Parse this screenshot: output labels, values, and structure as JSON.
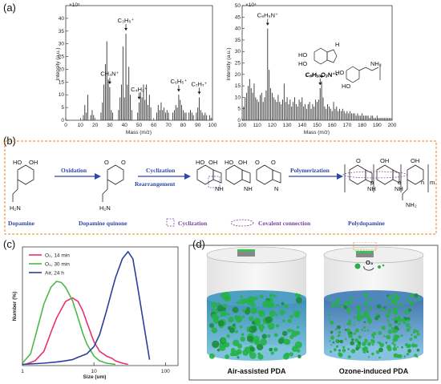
{
  "panels": {
    "a": "(a)",
    "b": "(b)",
    "c": "(c)",
    "d": "(d)"
  },
  "panel_a": {
    "left": {
      "exponent": "×10⁵",
      "ylabel": "Intensity (a.u.)",
      "xlabel": "Mass (m/z)",
      "yticks": [
        "0",
        "5",
        "10",
        "15",
        "20",
        "25",
        "30",
        "35",
        "40"
      ],
      "xticks": [
        "0",
        "10",
        "20",
        "30",
        "40",
        "50",
        "60",
        "70",
        "80",
        "90",
        "100"
      ],
      "annotations": [
        {
          "id": "ch4n",
          "text": "CH₄N⁺",
          "mz": 30
        },
        {
          "id": "c3h5",
          "text": "C₃H₅⁺",
          "mz": 41
        },
        {
          "id": "c4h2",
          "text": "C₄H₂⁺",
          "mz": 50
        },
        {
          "id": "c6h5",
          "text": "C₆H₅⁺",
          "mz": 77
        },
        {
          "id": "c7h7",
          "text": "C₇H₇⁺",
          "mz": 91
        }
      ]
    },
    "right": {
      "exponent": "×10⁴",
      "ylabel": "Intensity (a.u.)",
      "xlabel": "Mass (m/z)",
      "yticks": [
        "0",
        "5",
        "10",
        "15",
        "20",
        "25",
        "30",
        "35",
        "40",
        "45",
        "50"
      ],
      "xticks": [
        "100",
        "110",
        "120",
        "130",
        "140",
        "150",
        "160",
        "170",
        "180",
        "190",
        "200"
      ],
      "annotations": [
        {
          "id": "c8h5n",
          "text": "C₈H₅N⁺",
          "mz": 117
        },
        {
          "id": "c8h10o2n",
          "text": "C₈H₁₀O₂N⁺",
          "mz": 152
        },
        {
          "id": "c8h11o2n",
          "text": "C₈H₁₁O₂N⁺•",
          "mz": 153
        }
      ]
    }
  },
  "panel_b": {
    "steps": [
      "Oxidation",
      "Cyclization",
      "Rearrangement",
      "Polymerization"
    ],
    "compounds": [
      "Dopamine",
      "Dopamine quinone",
      "Polydopamine"
    ],
    "legend": [
      "Cyclization",
      "Covalent connection"
    ],
    "atoms": {
      "ho": "HO",
      "oh": "OH",
      "o": "O",
      "h2n": "H₂N",
      "nh2": "NH₂",
      "hn": "HN",
      "nh": "NH",
      "h": "H",
      "n": "N"
    },
    "subscripts": [
      "p",
      "o",
      "n",
      "m"
    ]
  },
  "panel_c": {
    "ylabel": "Number (%)",
    "xlabel": "Size (um)",
    "xticks": [
      "1",
      "10",
      "100"
    ],
    "legend": [
      {
        "label": "O₃, 14 min",
        "color": "#e8326e"
      },
      {
        "label": "O₃, 30 min",
        "color": "#4cb84a"
      },
      {
        "label": "Air, 24 h",
        "color": "#2b3f9e"
      }
    ]
  },
  "panel_d": {
    "left_label": "Air-assisted PDA",
    "right_label": "Ozone-induced PDA",
    "reagent": "O₃"
  },
  "chart_data": [
    {
      "type": "bar",
      "title": "",
      "xlabel": "Mass (m/z)",
      "ylabel": "Intensity (a.u.)",
      "xlim": [
        0,
        100
      ],
      "ylim": [
        0,
        45
      ],
      "x": [
        12,
        13,
        14,
        15,
        17,
        18,
        19,
        24,
        25,
        26,
        27,
        28,
        29,
        30,
        31,
        32,
        36,
        37,
        38,
        39,
        40,
        41,
        42,
        43,
        44,
        45,
        49,
        50,
        51,
        52,
        53,
        54,
        55,
        56,
        57,
        58,
        62,
        63,
        64,
        65,
        66,
        67,
        68,
        69,
        70,
        73,
        74,
        75,
        76,
        77,
        78,
        79,
        80,
        81,
        82,
        84,
        85,
        86,
        87,
        89,
        90,
        91,
        92,
        93,
        94,
        95,
        96,
        98,
        99
      ],
      "values": [
        2,
        6,
        3,
        10,
        2,
        4,
        2,
        3,
        7,
        14,
        22,
        31,
        16,
        13,
        4,
        3,
        4,
        9,
        14,
        29,
        9,
        34,
        14,
        21,
        10,
        4,
        3,
        7,
        11,
        9,
        14,
        8,
        14,
        6,
        10,
        5,
        3,
        6,
        4,
        7,
        4,
        5,
        3,
        4,
        3,
        3,
        4,
        6,
        5,
        10,
        8,
        6,
        4,
        3,
        3,
        3,
        4,
        3,
        2,
        3,
        5,
        9,
        4,
        3,
        2,
        3,
        2,
        2,
        1
      ]
    },
    {
      "type": "bar",
      "title": "",
      "xlabel": "Mass (m/z)",
      "ylabel": "Intensity (a.u.)",
      "xlim": [
        100,
        200
      ],
      "ylim": [
        0,
        50
      ],
      "x": [
        101,
        102,
        103,
        104,
        105,
        106,
        107,
        108,
        109,
        110,
        111,
        112,
        113,
        114,
        115,
        116,
        117,
        118,
        119,
        120,
        121,
        122,
        123,
        124,
        125,
        126,
        127,
        128,
        129,
        130,
        131,
        132,
        133,
        134,
        135,
        136,
        137,
        138,
        139,
        140,
        141,
        142,
        143,
        144,
        145,
        146,
        147,
        148,
        149,
        150,
        151,
        152,
        153,
        154,
        155,
        156,
        157,
        158,
        159,
        160,
        161,
        162,
        163,
        164,
        165,
        166,
        167,
        168,
        169,
        170,
        171,
        172,
        173,
        174,
        175,
        176,
        177,
        178,
        179,
        180,
        181,
        182,
        183,
        184,
        185,
        186,
        187,
        188,
        189,
        190,
        191,
        192,
        193,
        194,
        195,
        196,
        197,
        198,
        199
      ],
      "values": [
        6,
        10,
        12,
        15,
        18,
        14,
        12,
        16,
        10,
        9,
        8,
        11,
        12,
        8,
        10,
        13,
        40,
        22,
        14,
        12,
        10,
        9,
        8,
        11,
        8,
        7,
        9,
        16,
        8,
        10,
        7,
        9,
        6,
        8,
        10,
        7,
        6,
        9,
        8,
        10,
        6,
        7,
        5,
        7,
        8,
        5,
        7,
        6,
        9,
        8,
        9,
        14,
        17,
        10,
        6,
        5,
        7,
        6,
        5,
        4,
        8,
        5,
        6,
        4,
        5,
        4,
        5,
        4,
        3,
        4,
        3,
        4,
        3,
        3,
        3,
        2,
        3,
        2,
        2,
        3,
        2,
        2,
        2,
        2,
        1,
        2,
        2,
        1,
        1,
        2,
        1,
        1,
        1,
        1,
        1,
        1,
        1,
        1,
        1
      ]
    },
    {
      "type": "line",
      "title": "",
      "xlabel": "Size (um)",
      "ylabel": "Number (%)",
      "xscale": "log",
      "xlim": [
        1,
        150
      ],
      "series": [
        {
          "name": "O₃, 14 min",
          "color": "#e8326e",
          "x": [
            1.1,
            1.5,
            2,
            2.5,
            3,
            4,
            5,
            6,
            7,
            8,
            10,
            12,
            15,
            18,
            20,
            25,
            30
          ],
          "values": [
            1,
            4,
            12,
            28,
            40,
            54,
            57,
            54,
            46,
            36,
            20,
            12,
            8,
            6,
            4,
            2,
            1
          ]
        },
        {
          "name": "O₃, 30 min",
          "color": "#4cb84a",
          "x": [
            1,
            1.3,
            1.6,
            2,
            2.5,
            3,
            3.5,
            4,
            5,
            6,
            7,
            8,
            10,
            12,
            15,
            20
          ],
          "values": [
            2,
            10,
            30,
            52,
            66,
            71,
            70,
            66,
            55,
            40,
            27,
            18,
            8,
            4,
            2,
            1
          ]
        },
        {
          "name": "Air, 24 h",
          "color": "#2b3f9e",
          "x": [
            1,
            2,
            3,
            4,
            5,
            6,
            8,
            10,
            12,
            15,
            18,
            20,
            25,
            30,
            35,
            40,
            50,
            60
          ],
          "values": [
            1,
            2,
            3,
            4,
            5,
            7,
            10,
            16,
            26,
            46,
            64,
            74,
            90,
            96,
            90,
            70,
            34,
            5
          ]
        }
      ]
    }
  ]
}
